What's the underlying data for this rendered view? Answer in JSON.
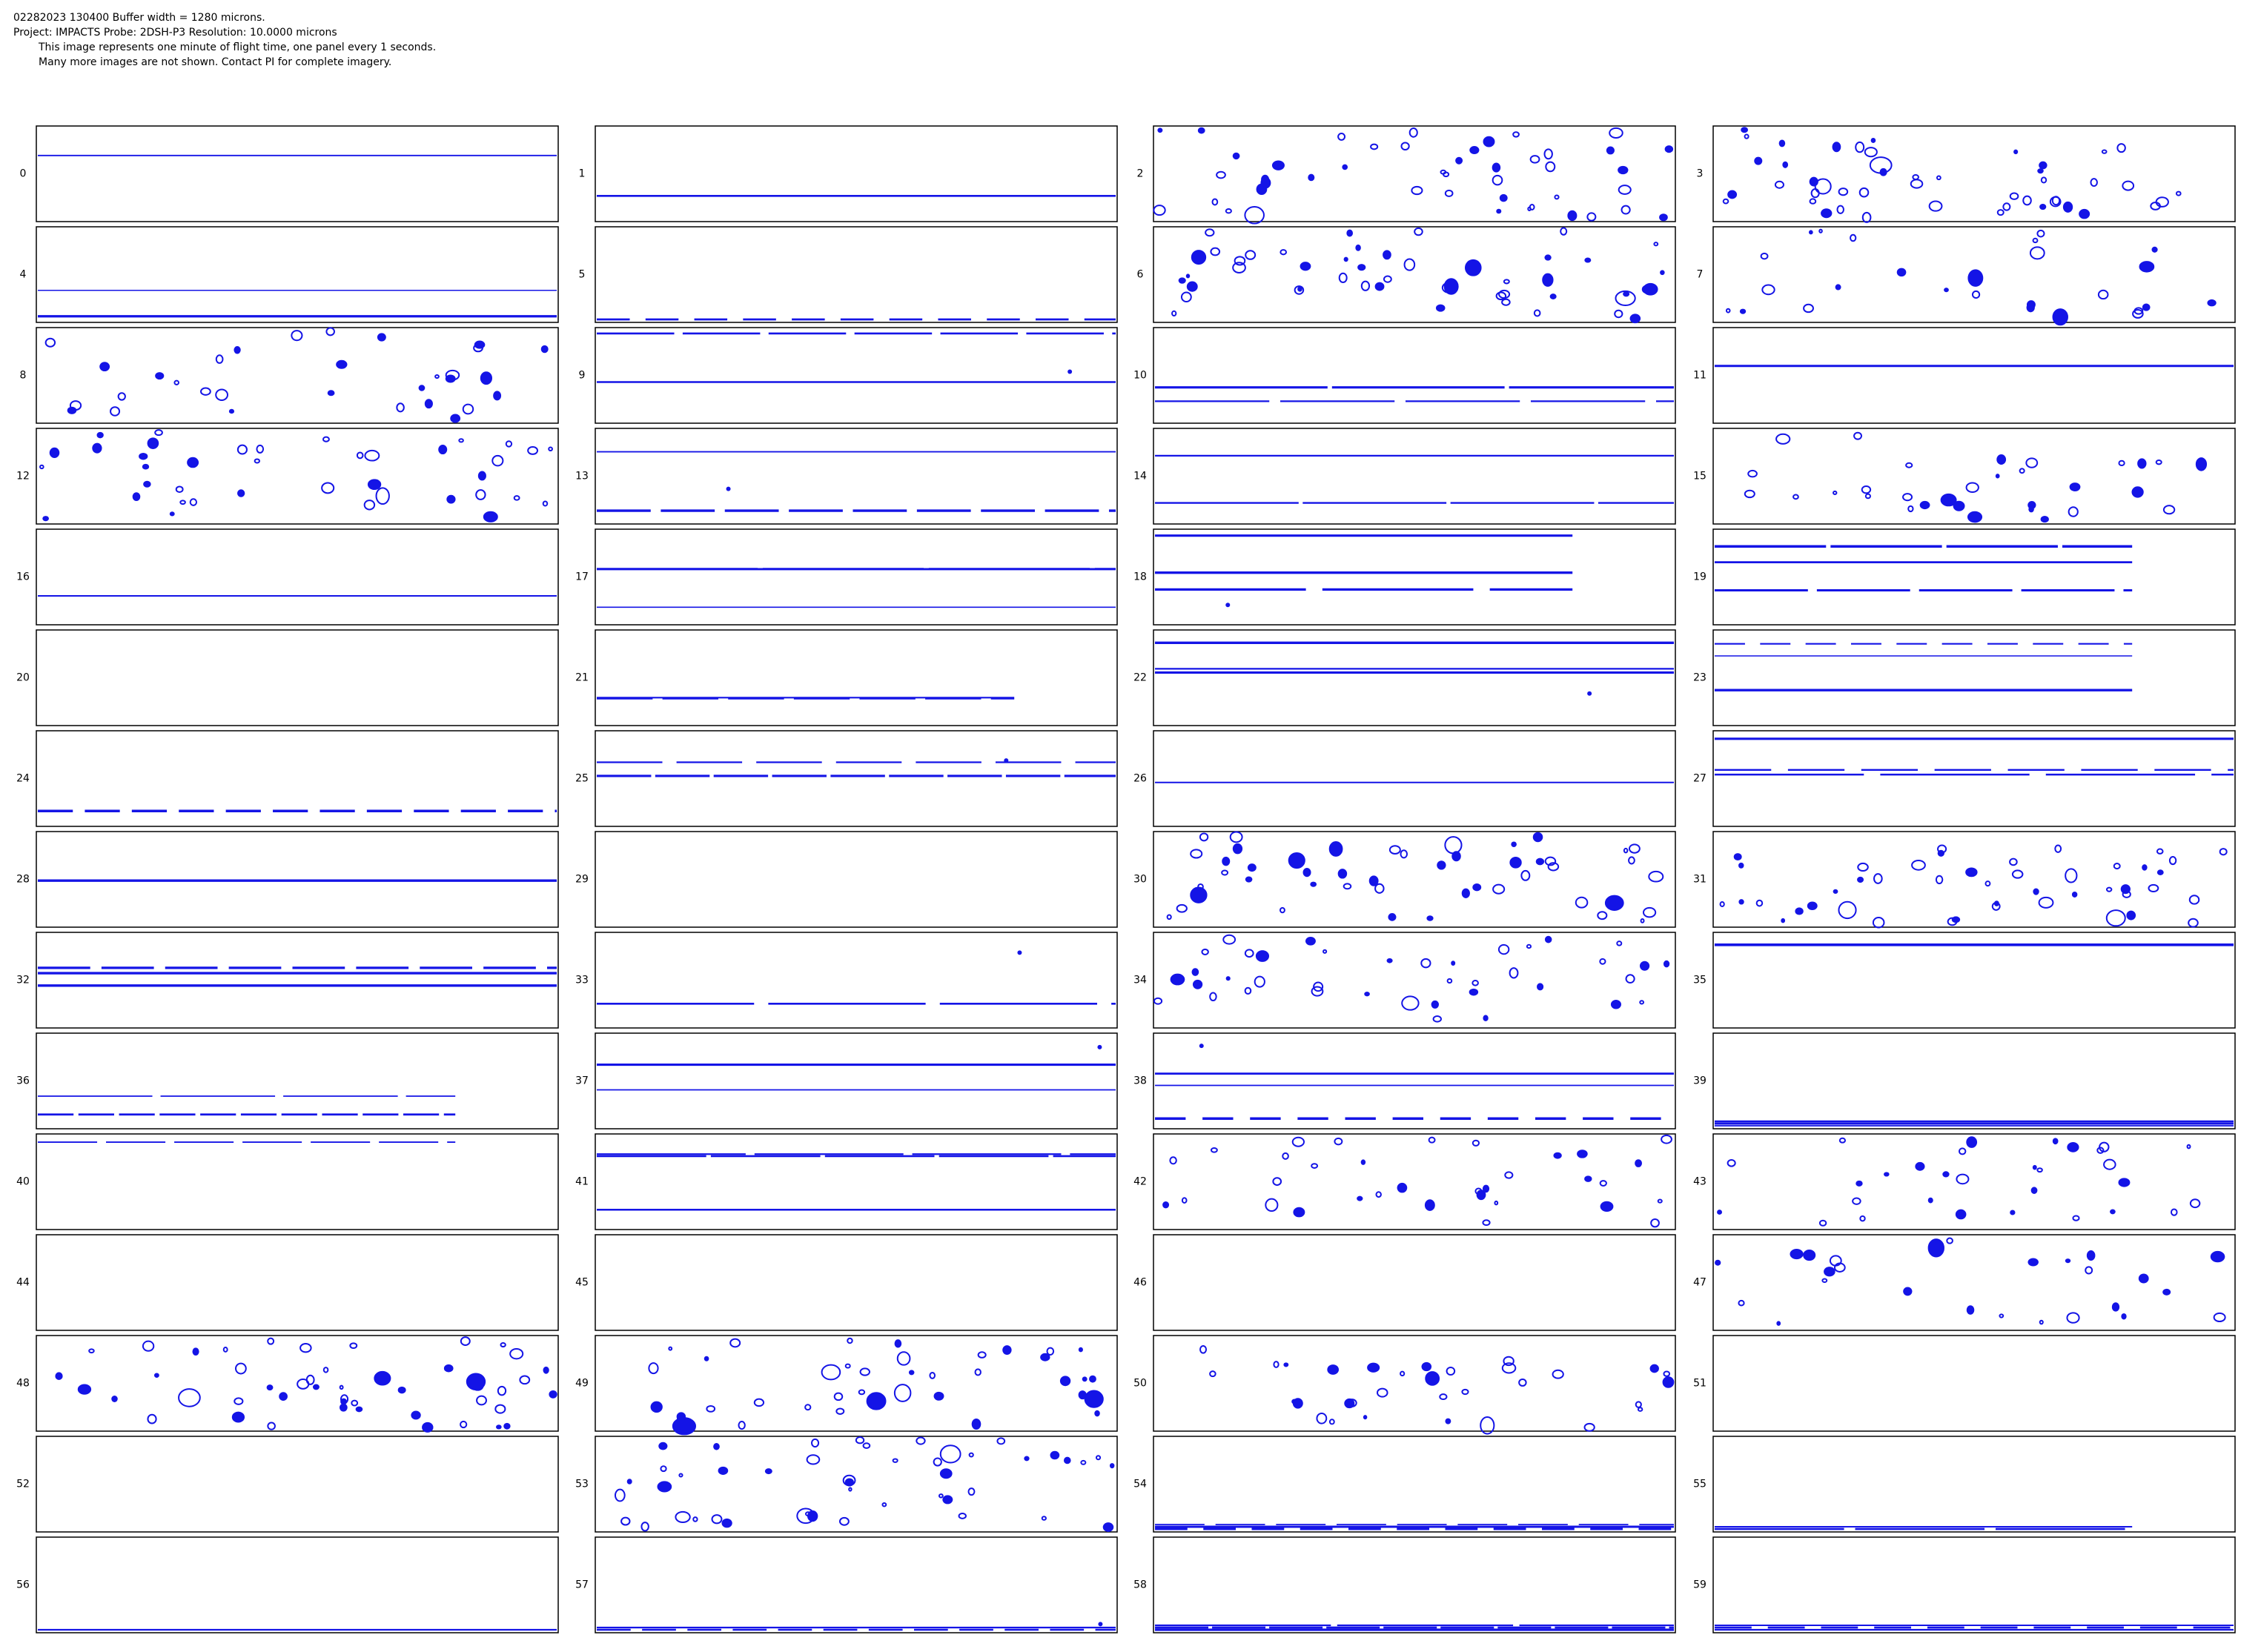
{
  "header": {
    "lines": [
      "02282023 130400  Buffer width = 1280 microns.",
      "Project: IMPACTS  Probe: 2DSH-P3    Resolution: 10.0000 microns",
      "This image represents one minute of flight time, one panel every 1 seconds.",
      "Many more images are not shown.  Contact PI for complete imagery."
    ]
  },
  "panels": [
    "0",
    "1",
    "2",
    "3",
    "4",
    "5",
    "6",
    "7",
    "8",
    "9",
    "10",
    "11",
    "12",
    "13",
    "14",
    "15",
    "16",
    "17",
    "18",
    "19",
    "20",
    "21",
    "22",
    "23",
    "24",
    "25",
    "26",
    "27",
    "28",
    "29",
    "30",
    "31",
    "32",
    "33",
    "34",
    "35",
    "36",
    "37",
    "38",
    "39",
    "40",
    "41",
    "42",
    "43",
    "44",
    "45",
    "46",
    "47",
    "48",
    "49",
    "50",
    "51",
    "52",
    "53",
    "54",
    "55",
    "56",
    "57",
    "58",
    "59"
  ]
}
